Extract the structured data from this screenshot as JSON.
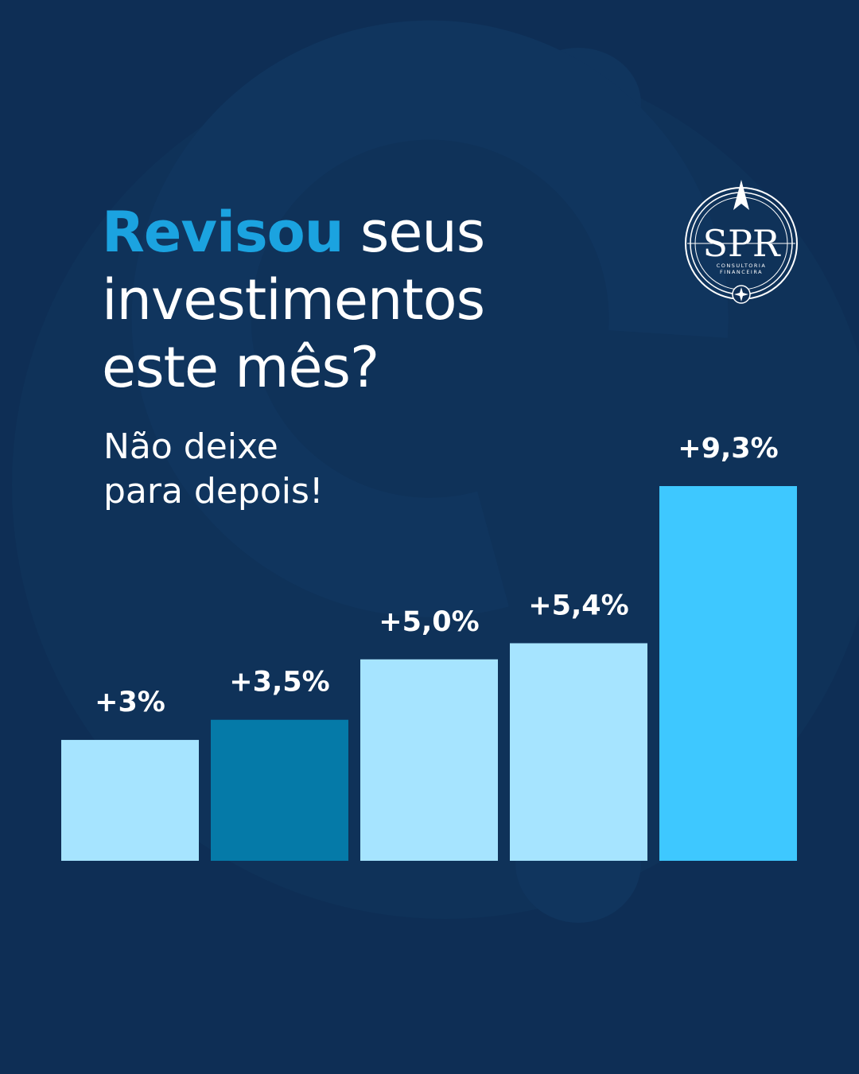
{
  "headline": {
    "highlight": "Revisou",
    "line1_rest": " seus",
    "line2": "investimentos",
    "line3": "este mês?"
  },
  "subtitle": {
    "line1": "Não deixe",
    "line2": "para depois!"
  },
  "logo": {
    "letters": "SPR",
    "line1": "CONSULTORIA",
    "line2": "FINANCEIRA",
    "icon": "compass-seal-icon"
  },
  "colors": {
    "background": "#0e2e55",
    "accent": "#1ba3e0",
    "bar_light": "#a6e4ff",
    "bar_dark": "#057aa8",
    "bar_bright": "#3ec8ff"
  },
  "chart_data": {
    "type": "bar",
    "categories": [
      "",
      "",
      "",
      "",
      ""
    ],
    "values": [
      3,
      3.5,
      5.0,
      5.4,
      9.3
    ],
    "labels": [
      "+3%",
      "+3,5%",
      "+5,0%",
      "+5,4%",
      "+9,3%"
    ],
    "colors": [
      "#a6e4ff",
      "#057aa8",
      "#a6e4ff",
      "#a6e4ff",
      "#3ec8ff"
    ],
    "title": "",
    "xlabel": "",
    "ylabel": "",
    "ylim": [
      0,
      9.3
    ],
    "grid": false
  }
}
